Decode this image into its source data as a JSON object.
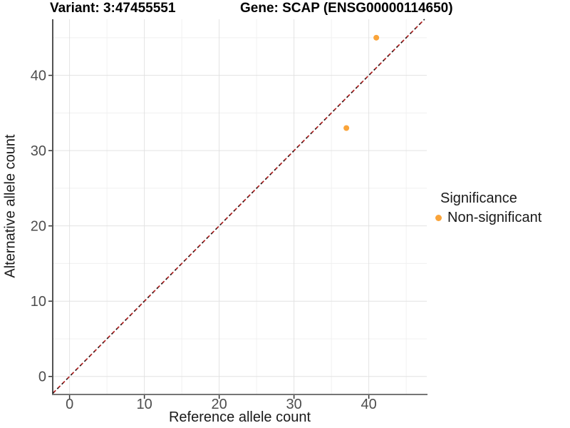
{
  "title": {
    "variant": "Variant: 3:47455551",
    "gene": "Gene: SCAP (ENSG00000114650)"
  },
  "axes": {
    "x_label": "Reference allele count",
    "y_label": "Alternative allele count"
  },
  "legend": {
    "title": "Significance",
    "items": [
      {
        "label": "Non-significant",
        "color": "#FAA43A"
      }
    ]
  },
  "colors": {
    "point": "#FAA43A",
    "dash_black": "#1A1A1A",
    "dash_red": "#B22222",
    "grid_major": "#E2E2E2",
    "grid_minor": "#F0F0F0",
    "axis_line_left": "#1A1A1A",
    "axis_line_bottom": "#757575",
    "tick_mark": "#333333",
    "tick_text": "#4D4D4D"
  },
  "chart_data": {
    "type": "scatter",
    "title": "Variant: 3:47455551 | Gene: SCAP (ENSG00000114650)",
    "xlabel": "Reference allele count",
    "ylabel": "Alternative allele count",
    "xlim": [
      -2.25,
      47.75
    ],
    "ylim": [
      -2.3,
      47.45
    ],
    "x_ticks": [
      0,
      10,
      20,
      30,
      40
    ],
    "y_ticks": [
      0,
      10,
      20,
      30,
      40
    ],
    "x_minor": [
      5,
      15,
      25,
      35,
      45
    ],
    "y_minor": [
      5,
      15,
      25,
      35,
      45
    ],
    "grid": true,
    "legend_position": "right",
    "series": [
      {
        "name": "Non-significant",
        "color": "#FAA43A",
        "points": [
          {
            "x": 37,
            "y": 33
          },
          {
            "x": 41,
            "y": 45
          }
        ]
      }
    ],
    "reference_line": {
      "type": "identity",
      "slope": 1,
      "intercept": 0,
      "style": "dashed",
      "colors": [
        "#1A1A1A",
        "#B22222"
      ]
    }
  }
}
